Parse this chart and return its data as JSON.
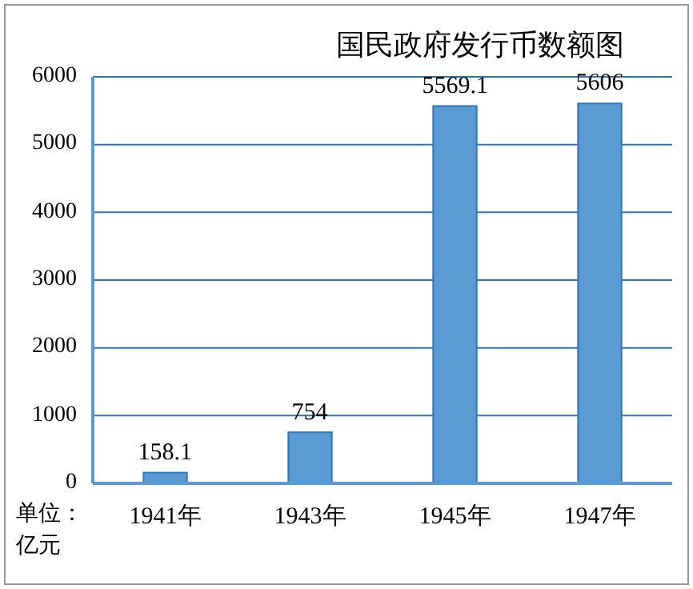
{
  "chart_data": {
    "type": "bar",
    "title": "国民政府发行币数额图",
    "categories": [
      "1941年",
      "1943年",
      "1945年",
      "1947年"
    ],
    "values": [
      158.1,
      754,
      5569.1,
      5606
    ],
    "color": "#5b9bd5",
    "ylim": [
      0,
      6000
    ],
    "yticks": [
      0,
      1000,
      2000,
      3000,
      4000,
      5000,
      6000
    ],
    "grid": "y",
    "data_labels": true,
    "annotations": [
      "单位：亿元"
    ]
  }
}
